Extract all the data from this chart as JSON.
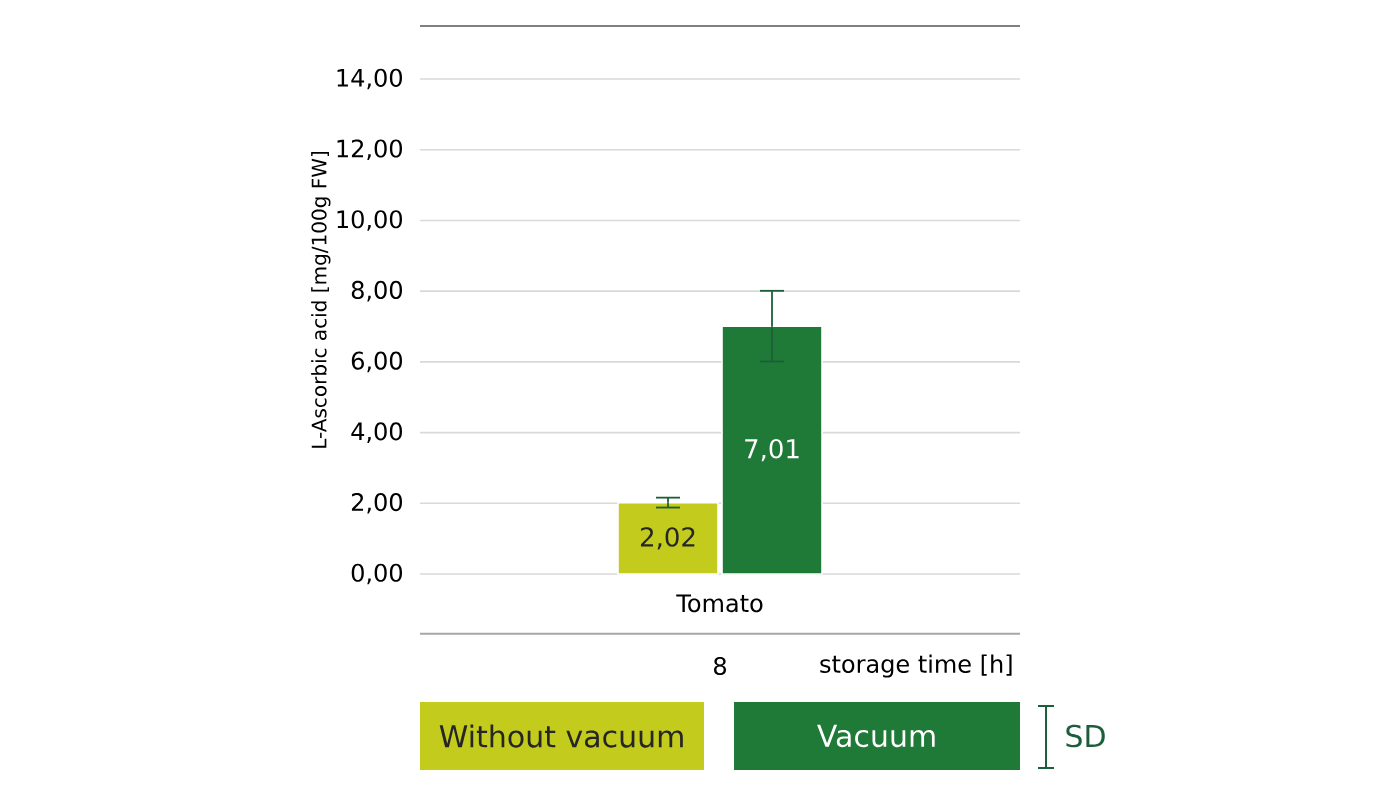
{
  "chart_data": {
    "type": "bar",
    "ylabel": "L-Ascorbic acid [mg/100g FW]",
    "categories": [
      "Tomato"
    ],
    "series": [
      {
        "name": "Without vacuum",
        "color": "#c3cb1c",
        "values": [
          2.02
        ],
        "errors": [
          0.14
        ],
        "value_labels": [
          "2,02"
        ]
      },
      {
        "name": "Vacuum",
        "color": "#1f7a38",
        "values": [
          7.01
        ],
        "errors": [
          1.0
        ],
        "value_labels": [
          "7,01"
        ]
      }
    ],
    "ylim": [
      0,
      15.5
    ],
    "yticks": [
      {
        "value": 0,
        "label": "0,00"
      },
      {
        "value": 2,
        "label": "2,00"
      },
      {
        "value": 4,
        "label": "4,00"
      },
      {
        "value": 6,
        "label": "6,00"
      },
      {
        "value": 8,
        "label": "8,00"
      },
      {
        "value": 10,
        "label": "10,00"
      },
      {
        "value": 12,
        "label": "12,00"
      },
      {
        "value": 14,
        "label": "14,00"
      }
    ],
    "grid": "y",
    "legend": "bottom",
    "annotations": [
      "8",
      "storage time [h]",
      "SD"
    ]
  }
}
